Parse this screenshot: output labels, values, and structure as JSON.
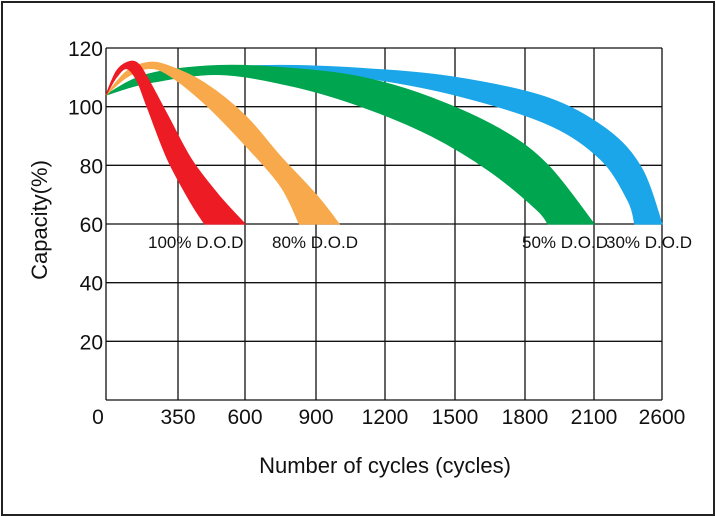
{
  "chart_data": {
    "type": "area",
    "xlabel": "Number of cycles (cycles)",
    "ylabel": "Capacity(%)",
    "x_ticks": [
      "0",
      "350",
      "600",
      "900",
      "1200",
      "1500",
      "1800",
      "2100",
      "2600"
    ],
    "y_ticks": [
      "20",
      "40",
      "60",
      "80",
      "100",
      "120"
    ],
    "ylim": [
      0,
      120
    ],
    "grid": true,
    "series": [
      {
        "name": "100% D.O.D",
        "label": "100% D.O.D",
        "color": "#ed1c24",
        "upper": [
          [
            0,
            104
          ],
          [
            50,
            112
          ],
          [
            100,
            115
          ],
          [
            150,
            115
          ],
          [
            200,
            110
          ],
          [
            300,
            97
          ],
          [
            400,
            82
          ],
          [
            500,
            70
          ],
          [
            600,
            60
          ]
        ],
        "lower": [
          [
            0,
            104
          ],
          [
            50,
            110
          ],
          [
            100,
            113
          ],
          [
            150,
            109
          ],
          [
            200,
            100
          ],
          [
            300,
            82
          ],
          [
            400,
            67
          ],
          [
            450,
            60
          ]
        ]
      },
      {
        "name": "80% D.O.D",
        "label": "80% D.O.D",
        "color": "#f7a94b",
        "upper": [
          [
            0,
            104
          ],
          [
            100,
            112
          ],
          [
            200,
            115
          ],
          [
            300,
            114
          ],
          [
            450,
            108
          ],
          [
            600,
            97
          ],
          [
            750,
            83
          ],
          [
            900,
            70
          ],
          [
            1000,
            60
          ]
        ],
        "lower": [
          [
            0,
            104
          ],
          [
            100,
            110
          ],
          [
            200,
            113
          ],
          [
            300,
            111
          ],
          [
            450,
            101
          ],
          [
            600,
            87
          ],
          [
            750,
            73
          ],
          [
            830,
            60
          ]
        ]
      },
      {
        "name": "50% D.O.D",
        "label": "50% D.O.D",
        "color": "#00a550",
        "upper": [
          [
            0,
            104
          ],
          [
            200,
            111
          ],
          [
            500,
            114
          ],
          [
            800,
            113
          ],
          [
            1100,
            110
          ],
          [
            1400,
            103
          ],
          [
            1700,
            92
          ],
          [
            1900,
            80
          ],
          [
            2100,
            60
          ]
        ],
        "lower": [
          [
            0,
            104
          ],
          [
            200,
            108
          ],
          [
            500,
            111
          ],
          [
            800,
            107
          ],
          [
            1100,
            100
          ],
          [
            1400,
            90
          ],
          [
            1650,
            78
          ],
          [
            1850,
            65
          ],
          [
            1900,
            60
          ]
        ]
      },
      {
        "name": "30% D.O.D",
        "label": "30% D.O.D",
        "color": "#1aa6e8",
        "upper": [
          [
            0,
            104
          ],
          [
            300,
            112
          ],
          [
            700,
            114
          ],
          [
            1100,
            113
          ],
          [
            1500,
            110
          ],
          [
            1900,
            103
          ],
          [
            2200,
            92
          ],
          [
            2450,
            79
          ],
          [
            2600,
            60
          ]
        ],
        "lower": [
          [
            0,
            104
          ],
          [
            300,
            110
          ],
          [
            700,
            113
          ],
          [
            1100,
            110
          ],
          [
            1500,
            104
          ],
          [
            1900,
            94
          ],
          [
            2150,
            82
          ],
          [
            2350,
            68
          ],
          [
            2400,
            60
          ]
        ]
      }
    ]
  }
}
